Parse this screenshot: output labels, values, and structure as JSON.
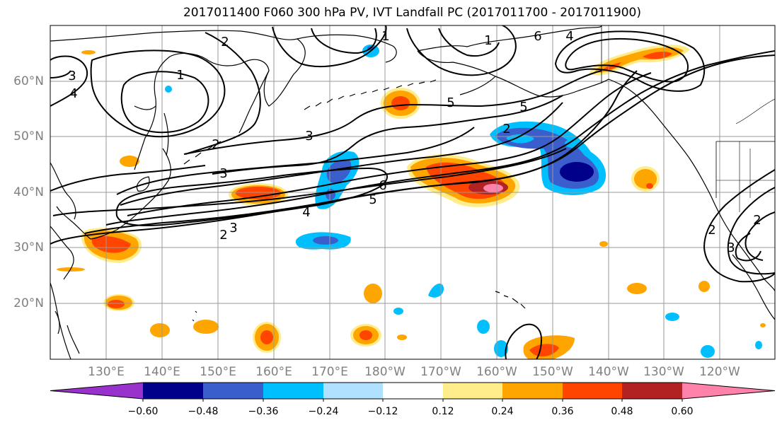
{
  "title": "2017011400 F060 300 hPa PV, IVT Landfall PC (2017011700 - 2017011900)",
  "lat_labels": [
    "60°N",
    "50°N",
    "40°N",
    "30°N",
    "20°N"
  ],
  "lon_labels": [
    "130°E",
    "140°E",
    "150°E",
    "160°E",
    "170°E",
    "180°W",
    "170°W",
    "160°W",
    "150°W",
    "140°W",
    "130°W",
    "120°W"
  ],
  "colorbar": {
    "colors": [
      "#9932cc",
      "#00008b",
      "#3a5fcd",
      "#00bfff",
      "#b0e2ff",
      "#ffffff",
      "#ffec8b",
      "#ffa500",
      "#ff4500",
      "#b22222",
      "#ff82ab"
    ],
    "ticks": [
      "−0.60",
      "−0.48",
      "−0.36",
      "−0.24",
      "−0.12",
      "0.12",
      "0.24",
      "0.36",
      "0.48",
      "0.60"
    ]
  },
  "contour_labels": [
    "2",
    "1",
    "1",
    "6",
    "4",
    "3",
    "4",
    "1",
    "2",
    "3",
    "3",
    "5",
    "5",
    "2",
    "6",
    "5",
    "4",
    "3",
    "2",
    "2",
    "2",
    "3"
  ],
  "colors": {
    "land_outline": "#000000",
    "grid": "#999999",
    "contour": "#000000",
    "axis_label": "#808080"
  }
}
